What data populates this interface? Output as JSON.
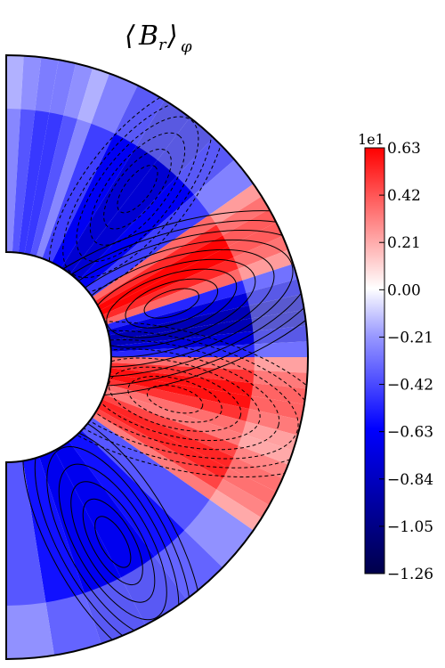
{
  "chart_data": {
    "type": "heatmap",
    "title": "⟨B_r⟩_φ",
    "title_parts": {
      "base": "B",
      "sub": "r",
      "avg_sub": "φ"
    },
    "projection": "meridional half-annulus",
    "colormap": "seismic",
    "colorbar": {
      "exponent_label": "1e1",
      "ticks": [
        0.63,
        0.42,
        0.21,
        0.0,
        -0.21,
        -0.42,
        -0.63,
        -0.84,
        -1.05,
        -1.26
      ],
      "tick_labels": [
        "0.63",
        "0.42",
        "0.21",
        "0.00",
        "−0.21",
        "−0.42",
        "−0.63",
        "−0.84",
        "−1.05",
        "−1.26"
      ],
      "range": [
        -1.26,
        0.63
      ]
    },
    "field_bands": [
      {
        "colatitude_deg": [
          0,
          20
        ],
        "sign": "mixed",
        "value": -0.5
      },
      {
        "colatitude_deg": [
          20,
          55
        ],
        "sign": "negative",
        "value": -0.8
      },
      {
        "colatitude_deg": [
          55,
          72
        ],
        "sign": "positive",
        "value": 0.63
      },
      {
        "colatitude_deg": [
          72,
          90
        ],
        "sign": "negative",
        "value": -0.9
      },
      {
        "colatitude_deg": [
          90,
          108
        ],
        "sign": "positive",
        "value": 0.6
      },
      {
        "colatitude_deg": [
          108,
          125
        ],
        "sign": "positive",
        "value": 0.55
      },
      {
        "colatitude_deg": [
          125,
          180
        ],
        "sign": "negative",
        "value": -0.7
      }
    ],
    "contours": {
      "positive_style": "solid",
      "negative_style": "dashed",
      "color": "#000000"
    }
  },
  "colors": {
    "positive": "#ff0000",
    "negative": "#0000ff",
    "zero": "#ffffff",
    "outline": "#000000"
  }
}
